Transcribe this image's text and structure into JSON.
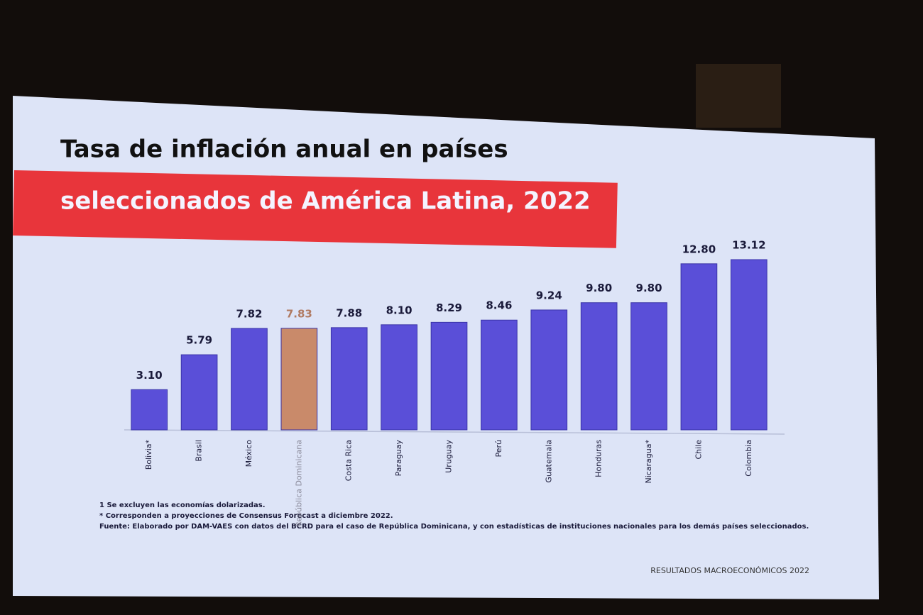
{
  "chart_data": {
    "type": "bar",
    "title": "Tasa de inflación anual en países",
    "subtitle": "seleccionados de América Latina, 2022",
    "categories": [
      "Bolivia*",
      "Brasil",
      "México",
      "República Dominicana",
      "Costa Rica",
      "Paraguay",
      "Uruguay",
      "Perú",
      "Guatemala",
      "Honduras",
      "Nicaragua*",
      "Chile",
      "Colombia"
    ],
    "values": [
      3.1,
      5.79,
      7.82,
      7.83,
      7.88,
      8.1,
      8.29,
      8.46,
      9.24,
      9.8,
      9.8,
      12.8,
      13.12
    ],
    "value_labels": [
      "3.10",
      "5.79",
      "7.82",
      "7.83",
      "7.88",
      "8.10",
      "8.29",
      "8.46",
      "9.24",
      "9.80",
      "9.80",
      "12.80",
      "13.12"
    ],
    "colors": [
      "#5a4fd8",
      "#5a4fd8",
      "#5a4fd8",
      "#c98a6a",
      "#5a4fd8",
      "#5a4fd8",
      "#5a4fd8",
      "#5a4fd8",
      "#5a4fd8",
      "#5a4fd8",
      "#5a4fd8",
      "#5a4fd8",
      "#5a4fd8"
    ],
    "notes": [
      "1 Se excluyen las economías dolarizadas.",
      "* Corresponden a proyecciones de Consensus Forecast a diciembre 2022.",
      "Fuente: Elaborado por DAM-VAES con datos del BCRD para el caso de República Dominicana, y con estadísticas de instituciones nacionales para los demás países seleccionados."
    ],
    "footer": "RESULTADOS MACROECONÓMICOS 2022"
  }
}
